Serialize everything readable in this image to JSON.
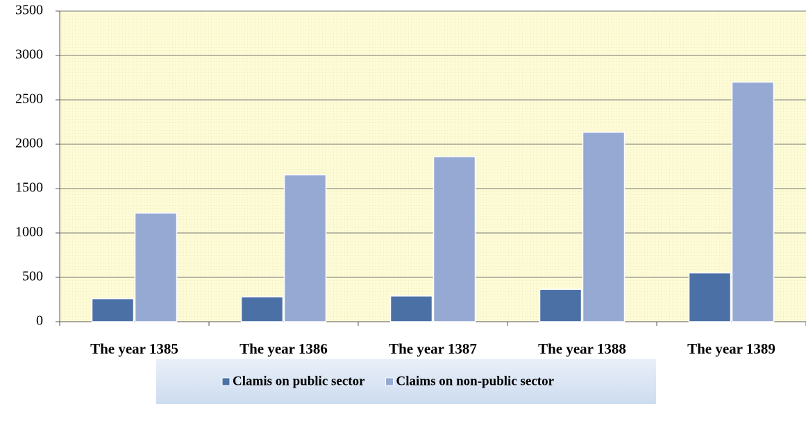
{
  "chart_data": {
    "type": "bar",
    "categories": [
      "The year 1385",
      "The year 1386",
      "The year 1387",
      "The year 1388",
      "The year 1389"
    ],
    "series": [
      {
        "name": "Clamis on public sector",
        "color": "#4a70a6",
        "values": [
          260,
          280,
          290,
          365,
          550
        ]
      },
      {
        "name": "Claims on non-public sector",
        "color": "#95a9d2",
        "values": [
          1225,
          1655,
          1860,
          2135,
          2700
        ]
      }
    ],
    "ylim": [
      0,
      3500
    ],
    "yticks": [
      0,
      500,
      1000,
      1500,
      2000,
      2500,
      3000,
      3500
    ],
    "grid": true,
    "legend": "bottom"
  }
}
